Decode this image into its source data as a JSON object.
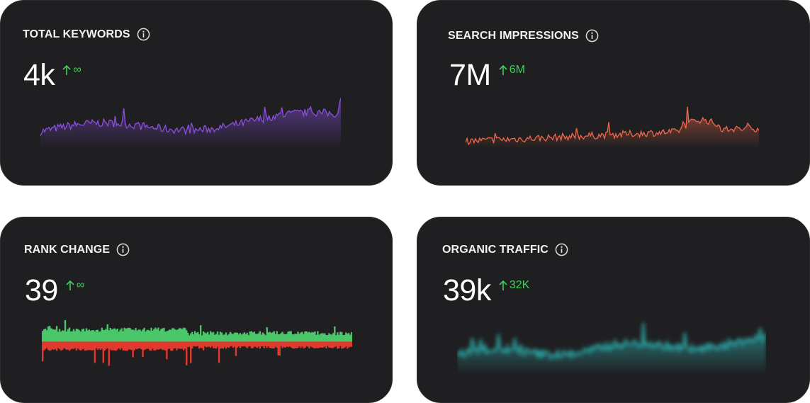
{
  "cards": [
    {
      "title": "TOTAL KEYWORDS",
      "value": "4k",
      "delta": "∞",
      "sparkline": {
        "type": "area",
        "color": "#8b4fe0",
        "shape": "rising-spiky",
        "trend": "up"
      }
    },
    {
      "title": "SEARCH IMPRESSIONS",
      "value": "7M",
      "delta": "6M",
      "sparkline": {
        "type": "area",
        "color": "#f0674a",
        "shape": "rising-peak",
        "trend": "up"
      }
    },
    {
      "title": "RANK CHANGE",
      "value": "39",
      "delta": "∞",
      "sparkline": {
        "type": "diverging-bars",
        "positive_color": "#4bc76a",
        "negative_color": "#e2392f",
        "trend": "flat"
      }
    },
    {
      "title": "ORGANIC TRAFFIC",
      "value": "39k",
      "delta": "32K",
      "sparkline": {
        "type": "area",
        "color": "#2a9a9a",
        "blurred": true,
        "trend": "up"
      }
    }
  ],
  "colors": {
    "card_background": "#1f1f21",
    "positive_delta": "#3ecf5a",
    "title_text": "#f2f2f2"
  },
  "icons": {
    "info": "info-icon",
    "delta_arrow": "arrow-up-icon"
  }
}
